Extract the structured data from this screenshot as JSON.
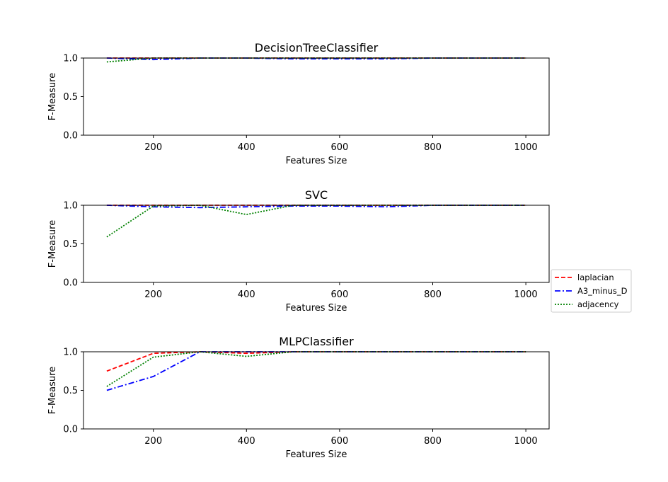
{
  "legend": {
    "placement": "right",
    "items": [
      {
        "label": "laplacian",
        "color": "#ff0000",
        "dash": "dashed"
      },
      {
        "label": "A3_minus_D",
        "color": "#0000ff",
        "dash": "dashdot"
      },
      {
        "label": "adjacency",
        "color": "#008000",
        "dash": "dotted"
      }
    ]
  },
  "chart_data": [
    {
      "type": "line",
      "title": "DecisionTreeClassifier",
      "xlabel": "Features Size",
      "ylabel": "F-Measure",
      "xlim": [
        50,
        1050
      ],
      "ylim": [
        0.0,
        1.0
      ],
      "xticks": [
        200,
        400,
        600,
        800,
        1000
      ],
      "yticks": [
        0.0,
        0.5,
        1.0
      ],
      "grid": false,
      "x": [
        100,
        200,
        300,
        400,
        500,
        600,
        700,
        800,
        900,
        1000
      ],
      "series": [
        {
          "name": "laplacian",
          "color": "#ff0000",
          "values": [
            1.0,
            1.0,
            1.0,
            1.0,
            1.0,
            1.0,
            1.0,
            1.0,
            1.0,
            1.0
          ]
        },
        {
          "name": "A3_minus_D",
          "color": "#0000ff",
          "values": [
            1.0,
            0.98,
            1.0,
            1.0,
            0.99,
            0.99,
            0.99,
            1.0,
            1.0,
            1.0
          ]
        },
        {
          "name": "adjacency",
          "color": "#008000",
          "values": [
            0.95,
            1.0,
            1.0,
            1.0,
            1.0,
            1.0,
            1.0,
            1.0,
            1.0,
            1.0
          ]
        }
      ]
    },
    {
      "type": "line",
      "title": "SVC",
      "xlabel": "Features Size",
      "ylabel": "F-Measure",
      "xlim": [
        50,
        1050
      ],
      "ylim": [
        0.0,
        1.0
      ],
      "xticks": [
        200,
        400,
        600,
        800,
        1000
      ],
      "yticks": [
        0.0,
        0.5,
        1.0
      ],
      "grid": false,
      "x": [
        100,
        200,
        300,
        400,
        500,
        600,
        700,
        800,
        900,
        1000
      ],
      "series": [
        {
          "name": "laplacian",
          "color": "#ff0000",
          "values": [
            1.0,
            1.0,
            1.0,
            1.0,
            1.0,
            1.0,
            1.0,
            1.0,
            1.0,
            1.0
          ]
        },
        {
          "name": "A3_minus_D",
          "color": "#0000ff",
          "values": [
            1.0,
            0.98,
            0.97,
            0.98,
            0.99,
            0.99,
            0.98,
            1.0,
            1.0,
            1.0
          ]
        },
        {
          "name": "adjacency",
          "color": "#008000",
          "values": [
            0.59,
            0.99,
            1.0,
            0.88,
            1.0,
            1.0,
            1.0,
            1.0,
            1.0,
            1.0
          ]
        }
      ]
    },
    {
      "type": "line",
      "title": "MLPClassifier",
      "xlabel": "Features Size",
      "ylabel": "F-Measure",
      "xlim": [
        50,
        1050
      ],
      "ylim": [
        0.0,
        1.0
      ],
      "xticks": [
        200,
        400,
        600,
        800,
        1000
      ],
      "yticks": [
        0.0,
        0.5,
        1.0
      ],
      "grid": false,
      "x": [
        100,
        200,
        300,
        400,
        500,
        600,
        700,
        800,
        900,
        1000
      ],
      "series": [
        {
          "name": "laplacian",
          "color": "#ff0000",
          "values": [
            0.75,
            0.98,
            1.0,
            0.98,
            1.0,
            1.0,
            1.0,
            1.0,
            1.0,
            1.0
          ]
        },
        {
          "name": "A3_minus_D",
          "color": "#0000ff",
          "values": [
            0.5,
            0.68,
            1.0,
            1.0,
            1.0,
            1.0,
            1.0,
            1.0,
            1.0,
            1.0
          ]
        },
        {
          "name": "adjacency",
          "color": "#008000",
          "values": [
            0.55,
            0.93,
            1.0,
            0.94,
            1.0,
            1.0,
            1.0,
            1.0,
            1.0,
            1.0
          ]
        }
      ]
    }
  ]
}
